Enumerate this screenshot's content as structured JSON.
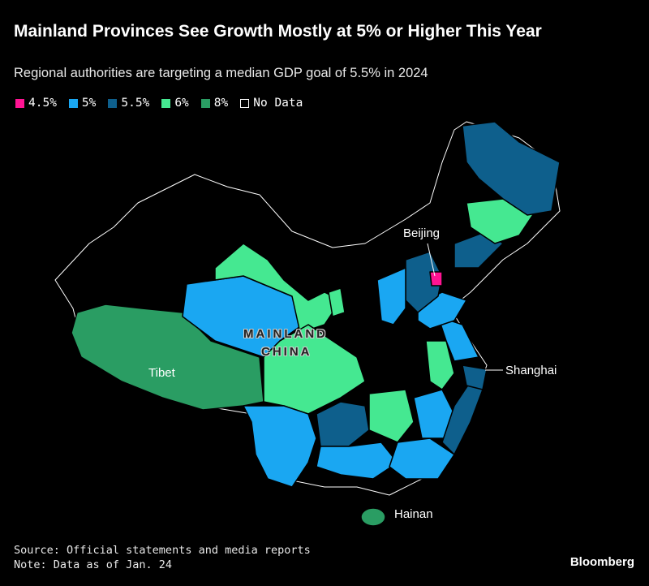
{
  "title": "Mainland Provinces See Growth Mostly at 5% or Higher This Year",
  "subtitle": "Regional authorities are targeting a median GDP goal of 5.5% in 2024",
  "legend": [
    {
      "label": "4.5%",
      "color": "#ff1493"
    },
    {
      "label": "5%",
      "color": "#1aa7f2"
    },
    {
      "label": "5.5%",
      "color": "#0e5f8c"
    },
    {
      "label": "6%",
      "color": "#45e891"
    },
    {
      "label": "8%",
      "color": "#2a9d63"
    },
    {
      "label": "No Data",
      "color": "#000000"
    }
  ],
  "map_labels": {
    "beijing": "Beijing",
    "mainland": "MAINLAND",
    "china": "CHINA",
    "tibet": "Tibet",
    "shanghai": "Shanghai",
    "hainan": "Hainan"
  },
  "footer": {
    "source": "Source: Official statements and media reports",
    "note": "Note: Data as of Jan. 24"
  },
  "logo": "Bloomberg"
}
